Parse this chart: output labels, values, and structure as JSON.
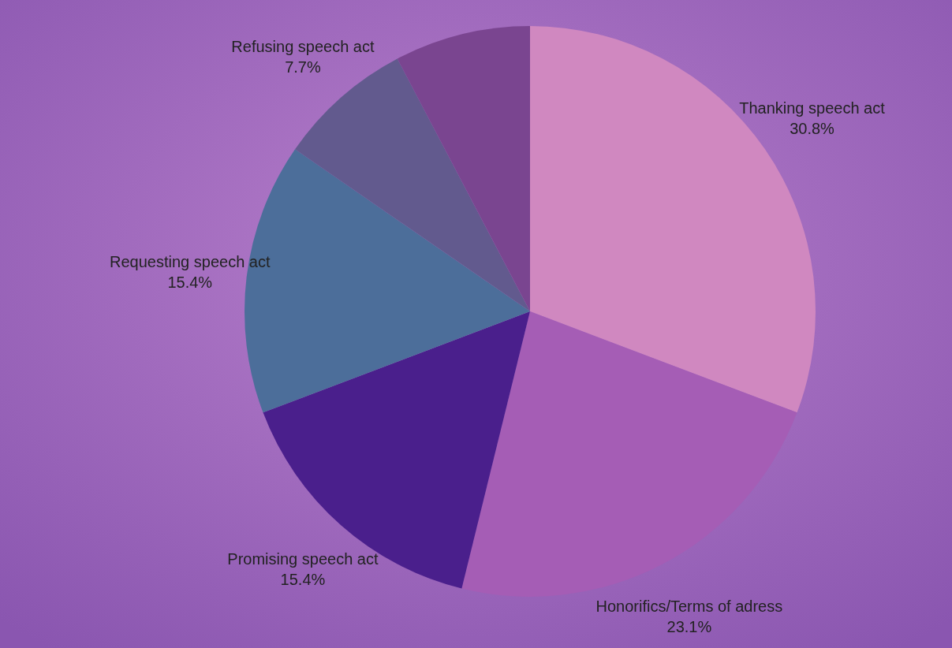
{
  "chart_data": {
    "type": "pie",
    "categories": [
      "Thanking speech act",
      "Honorifics/Terms of adress",
      "Promising speech act",
      "Requesting speech act",
      "Refusing speech act",
      null
    ],
    "values": [
      30.8,
      23.1,
      15.4,
      15.4,
      7.7,
      7.7
    ],
    "colors": [
      "#d088c0",
      "#a55db5",
      "#4a1f8c",
      "#4c6e9a",
      "#625a8e",
      "#7a4590"
    ],
    "value_labels": [
      "30.8%",
      "23.1%",
      "15.4%",
      "15.4%",
      "7.7%",
      null
    ]
  }
}
